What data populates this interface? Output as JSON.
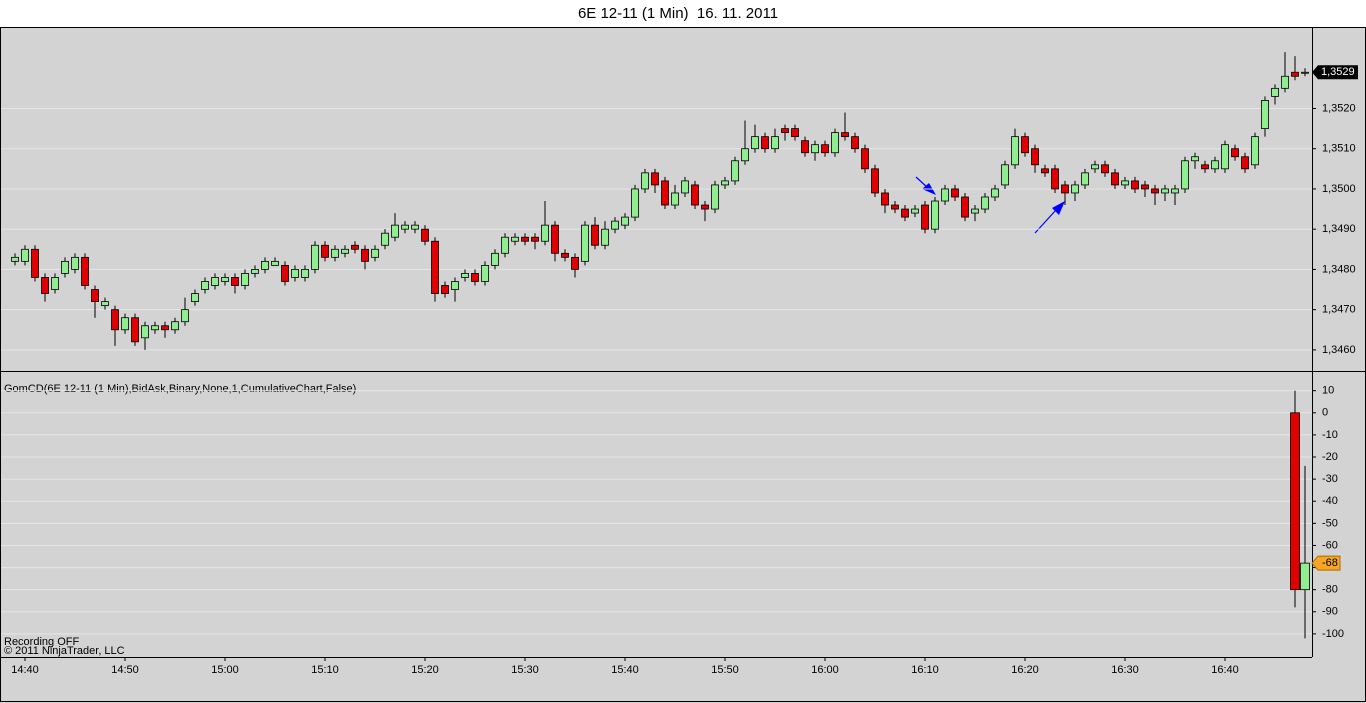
{
  "chart_data": [
    {
      "type": "candlestick",
      "title": "6E 12-11 (1 Min)  16. 11. 2011",
      "categories": [
        null,
        "14:40",
        null,
        null,
        null,
        null,
        null,
        null,
        null,
        null,
        null,
        "14:50",
        null,
        null,
        null,
        null,
        null,
        null,
        null,
        null,
        null,
        "15:00",
        null,
        null,
        null,
        null,
        null,
        null,
        null,
        null,
        null,
        "15:10",
        null,
        null,
        null,
        null,
        null,
        null,
        null,
        null,
        null,
        "15:20",
        null,
        null,
        null,
        null,
        null,
        null,
        null,
        null,
        null,
        "15:30",
        null,
        null,
        null,
        null,
        null,
        null,
        null,
        null,
        null,
        "15:40",
        null,
        null,
        null,
        null,
        null,
        null,
        null,
        null,
        null,
        "15:50",
        null,
        null,
        null,
        null,
        null,
        null,
        null,
        null,
        null,
        "16:00",
        null,
        null,
        null,
        null,
        null,
        null,
        null,
        null,
        null,
        "16:10",
        null,
        null,
        null,
        null,
        null,
        null,
        null,
        null,
        null,
        "16:20",
        null,
        null,
        null,
        null,
        null,
        null,
        null,
        null,
        null,
        "16:30",
        null,
        null,
        null,
        null,
        null,
        null,
        null,
        null,
        null,
        "16:40",
        null,
        null,
        null,
        null,
        null,
        null,
        null,
        null
      ],
      "open": [
        1.3482,
        1.3482,
        1.3485,
        1.3478,
        1.3475,
        1.3479,
        1.348,
        1.3483,
        1.3475,
        1.3471,
        1.347,
        1.3465,
        1.3468,
        1.3463,
        1.3465,
        1.3466,
        1.3465,
        1.3467,
        1.3472,
        1.3475,
        1.3476,
        1.3477,
        1.3478,
        1.3476,
        1.3479,
        1.348,
        1.3481,
        1.3481,
        1.3478,
        1.3478,
        1.348,
        1.3486,
        1.3483,
        1.3484,
        1.3486,
        1.3485,
        1.3483,
        1.3486,
        1.3488,
        1.349,
        1.349,
        1.349,
        1.3487,
        1.3476,
        1.3475,
        1.3478,
        1.3479,
        1.3477,
        1.3481,
        1.3484,
        1.3487,
        1.3488,
        1.3488,
        1.3487,
        1.3491,
        1.3484,
        1.3483,
        1.3482,
        1.3491,
        1.3486,
        1.349,
        1.3491,
        1.3493,
        1.35,
        1.3504,
        1.3502,
        1.3496,
        1.3499,
        1.3501,
        1.3496,
        1.3495,
        1.3501,
        1.3502,
        1.3507,
        1.351,
        1.3513,
        1.351,
        1.3515,
        1.3515,
        1.3512,
        1.3509,
        1.3511,
        1.3509,
        1.3514,
        1.3513,
        1.351,
        1.3505,
        1.3499,
        1.3496,
        1.3495,
        1.3494,
        1.3496,
        1.349,
        1.3497,
        1.35,
        1.3498,
        1.3494,
        1.3495,
        1.3498,
        1.3501,
        1.3506,
        1.3513,
        1.351,
        1.3505,
        1.3505,
        1.3501,
        1.3499,
        1.3501,
        1.3505,
        1.3506,
        1.3504,
        1.3501,
        1.3502,
        1.3501,
        1.35,
        1.3499,
        1.3499,
        1.35,
        1.3507,
        1.3506,
        1.3505,
        1.3505,
        1.351,
        1.3508,
        1.3506,
        1.3515,
        1.3523,
        1.3525,
        1.3529,
        1.3529
      ],
      "high": [
        1.3484,
        1.3486,
        1.3486,
        1.3479,
        1.3479,
        1.3483,
        1.3484,
        1.3484,
        1.3476,
        1.3473,
        1.3471,
        1.3469,
        1.3469,
        1.3467,
        1.3467,
        1.3467,
        1.3468,
        1.3473,
        1.3475,
        1.3478,
        1.3479,
        1.3479,
        1.3479,
        1.348,
        1.3481,
        1.3483,
        1.3483,
        1.3482,
        1.3481,
        1.3481,
        1.3487,
        1.3487,
        1.3486,
        1.3486,
        1.3487,
        1.3486,
        1.3486,
        1.349,
        1.3494,
        1.3492,
        1.3492,
        1.3491,
        1.3488,
        1.3477,
        1.3478,
        1.348,
        1.348,
        1.3482,
        1.3485,
        1.3489,
        1.3489,
        1.3489,
        1.3489,
        1.3497,
        1.3492,
        1.3485,
        1.3484,
        1.3492,
        1.3493,
        1.3492,
        1.3493,
        1.3494,
        1.3501,
        1.3505,
        1.3505,
        1.3503,
        1.3501,
        1.3503,
        1.3502,
        1.3497,
        1.3502,
        1.3503,
        1.3508,
        1.3517,
        1.3516,
        1.3514,
        1.3515,
        1.3516,
        1.3516,
        1.3513,
        1.3512,
        1.3512,
        1.3515,
        1.3519,
        1.3514,
        1.3511,
        1.3506,
        1.35,
        1.3497,
        1.3496,
        1.3496,
        1.3497,
        1.3498,
        1.3501,
        1.3501,
        1.3499,
        1.3496,
        1.3499,
        1.3501,
        1.3507,
        1.3515,
        1.3514,
        1.3511,
        1.3506,
        1.3506,
        1.3502,
        1.3502,
        1.3505,
        1.3507,
        1.3507,
        1.3505,
        1.3503,
        1.3503,
        1.3502,
        1.3501,
        1.3501,
        1.3501,
        1.3508,
        1.3509,
        1.3507,
        1.3508,
        1.3512,
        1.3511,
        1.3509,
        1.3514,
        1.3523,
        1.3526,
        1.3534,
        1.3533,
        1.353
      ],
      "low": [
        1.3481,
        1.3481,
        1.3477,
        1.3472,
        1.3474,
        1.3478,
        1.3479,
        1.3475,
        1.3468,
        1.347,
        1.3461,
        1.3464,
        1.3461,
        1.346,
        1.3464,
        1.3463,
        1.3464,
        1.3466,
        1.3471,
        1.3474,
        1.3475,
        1.3476,
        1.3474,
        1.3475,
        1.3478,
        1.3479,
        1.3481,
        1.3476,
        1.3477,
        1.3477,
        1.3479,
        1.3482,
        1.3482,
        1.3483,
        1.3484,
        1.348,
        1.3482,
        1.3485,
        1.3487,
        1.3489,
        1.3489,
        1.3486,
        1.3472,
        1.3473,
        1.3472,
        1.3477,
        1.3476,
        1.3476,
        1.348,
        1.3483,
        1.3486,
        1.3486,
        1.3485,
        1.3486,
        1.3482,
        1.3482,
        1.3478,
        1.3481,
        1.3485,
        1.3485,
        1.3489,
        1.349,
        1.3492,
        1.3499,
        1.3499,
        1.3495,
        1.3495,
        1.3498,
        1.3495,
        1.3492,
        1.3494,
        1.35,
        1.3501,
        1.3506,
        1.3509,
        1.3509,
        1.3509,
        1.3512,
        1.3512,
        1.3508,
        1.3507,
        1.3508,
        1.3508,
        1.3512,
        1.3509,
        1.3504,
        1.3498,
        1.3494,
        1.3494,
        1.3492,
        1.3493,
        1.3489,
        1.3489,
        1.3496,
        1.3497,
        1.3492,
        1.3492,
        1.3494,
        1.3497,
        1.35,
        1.3505,
        1.3508,
        1.3504,
        1.3503,
        1.3499,
        1.3496,
        1.3497,
        1.35,
        1.3504,
        1.3503,
        1.35,
        1.35,
        1.3499,
        1.3498,
        1.3496,
        1.3497,
        1.3496,
        1.3499,
        1.3505,
        1.3504,
        1.3504,
        1.3504,
        1.3507,
        1.3504,
        1.3505,
        1.3513,
        1.3521,
        1.3524,
        1.3527,
        1.3528
      ],
      "close": [
        1.3483,
        1.3485,
        1.3478,
        1.3474,
        1.3478,
        1.3482,
        1.3483,
        1.3476,
        1.3472,
        1.3472,
        1.3465,
        1.3468,
        1.3462,
        1.3466,
        1.3466,
        1.3465,
        1.3467,
        1.347,
        1.3474,
        1.3477,
        1.3478,
        1.3478,
        1.3476,
        1.3479,
        1.348,
        1.3482,
        1.3482,
        1.3477,
        1.348,
        1.348,
        1.3486,
        1.3483,
        1.3485,
        1.3485,
        1.3485,
        1.3482,
        1.3485,
        1.3489,
        1.3491,
        1.3491,
        1.3491,
        1.3487,
        1.3474,
        1.3474,
        1.3477,
        1.3479,
        1.3477,
        1.3481,
        1.3484,
        1.3488,
        1.3488,
        1.3487,
        1.3487,
        1.3491,
        1.3484,
        1.3483,
        1.348,
        1.3491,
        1.3486,
        1.349,
        1.3492,
        1.3493,
        1.35,
        1.3504,
        1.3501,
        1.3496,
        1.3499,
        1.3502,
        1.3496,
        1.3495,
        1.3501,
        1.3502,
        1.3507,
        1.351,
        1.3513,
        1.351,
        1.3513,
        1.3514,
        1.3513,
        1.3509,
        1.3511,
        1.3509,
        1.3514,
        1.3513,
        1.351,
        1.3505,
        1.3499,
        1.3496,
        1.3495,
        1.3493,
        1.3495,
        1.349,
        1.3497,
        1.35,
        1.3498,
        1.3493,
        1.3495,
        1.3498,
        1.35,
        1.3506,
        1.3513,
        1.3509,
        1.3506,
        1.3504,
        1.35,
        1.3499,
        1.3501,
        1.3504,
        1.3506,
        1.3504,
        1.3501,
        1.3502,
        1.35,
        1.35,
        1.3499,
        1.35,
        1.35,
        1.3507,
        1.3508,
        1.3505,
        1.3507,
        1.3511,
        1.3508,
        1.3505,
        1.3513,
        1.3522,
        1.3525,
        1.3528,
        1.3528,
        1.3529
      ],
      "up_color": "#90ee90",
      "down_color": "#e00000",
      "ylim": [
        1.3455,
        1.354
      ],
      "yticks": [
        {
          "value": 1.346,
          "label": "1,3460"
        },
        {
          "value": 1.347,
          "label": "1,3470"
        },
        {
          "value": 1.348,
          "label": "1,3480"
        },
        {
          "value": 1.349,
          "label": "1,3490"
        },
        {
          "value": 1.35,
          "label": "1,3500"
        },
        {
          "value": 1.351,
          "label": "1,3510"
        },
        {
          "value": 1.352,
          "label": "1,3520"
        }
      ],
      "last_price": {
        "value": 1.3529,
        "label": "1,3529"
      },
      "grid": true
    },
    {
      "type": "candlestick",
      "title": "GomCD(6E 12-11 (1 Min),BidAsk,Binary,None,1,CumulativeChart,False)",
      "categories": [
        null,
        null
      ],
      "open": [
        0,
        -80
      ],
      "high": [
        10,
        -24
      ],
      "low": [
        -88,
        -102
      ],
      "close": [
        -80,
        -68
      ],
      "up_color": "#90ee90",
      "down_color": "#e00000",
      "ylim": [
        -110,
        18
      ],
      "yticks": [
        10,
        0,
        -10,
        -20,
        -30,
        -40,
        -50,
        -60,
        -70,
        -80,
        -90,
        -100
      ],
      "last_value": -68,
      "annotations": [
        "Recording OFF",
        "© 2011 NinjaTrader, LLC"
      ],
      "grid": true
    }
  ]
}
